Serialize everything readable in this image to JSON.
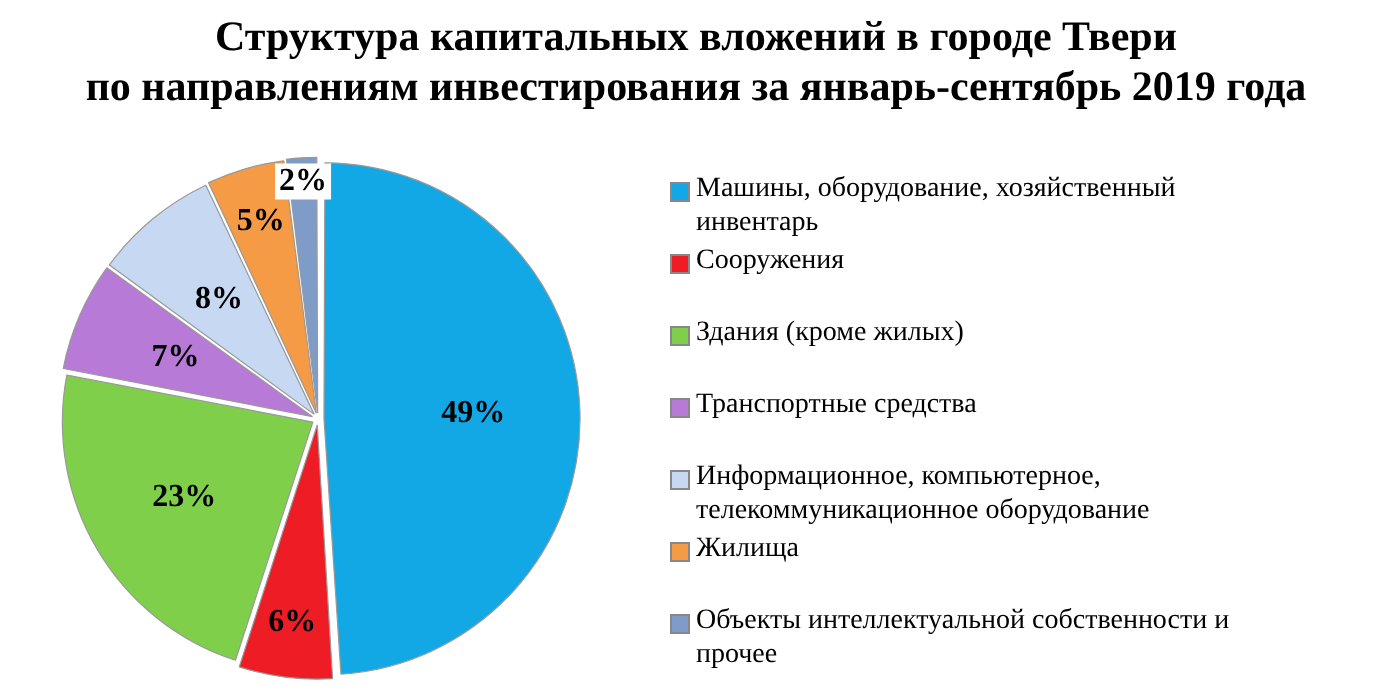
{
  "chart_data": {
    "type": "pie",
    "title": "Структура  капитальных вложений в городе Твери\nпо направлениям инвестирования за январь-сентябрь 2019 года",
    "categories": [
      "Машины, оборудование, хозяйственный инвентарь",
      "Сооружения",
      "Здания (кроме жилых)",
      "Транспортные средства",
      "Информационное, компьютерное, телекоммуникационное оборудование",
      "Жилища",
      "Объекты интеллектуальной собственности и прочее"
    ],
    "values": [
      49,
      6,
      23,
      7,
      8,
      5,
      2
    ],
    "colors": [
      "#12a8e6",
      "#ee1c24",
      "#7fcf4a",
      "#b77ad6",
      "#c6d8f2",
      "#f59a45",
      "#7f9cc8"
    ],
    "value_labels": [
      "49%",
      "6%",
      "23%",
      "7%",
      "8%",
      "5%",
      "2%"
    ],
    "legend": "right"
  }
}
